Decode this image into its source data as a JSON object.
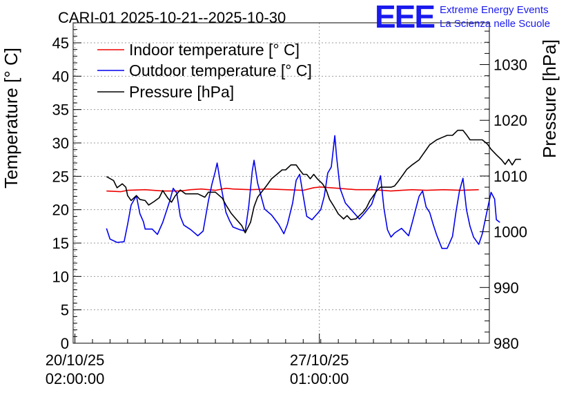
{
  "title": "CARI-01 2025-10-21--2025-10-30",
  "logo": {
    "text": "EEE",
    "line1": "Extreme Energy Events",
    "line2": "La Scienza nelle Scuole",
    "color": "#1a1aee"
  },
  "chart_data": {
    "type": "line",
    "title": "CARI-01 2025-10-21--2025-10-30",
    "x_ticks": [
      {
        "t": 0.0,
        "date": "20/10/25",
        "time": "02:00:00"
      },
      {
        "t": 6.96,
        "date": "27/10/25",
        "time": "01:00:00"
      }
    ],
    "x_range_days": [
      -0.05,
      11.8
    ],
    "left_axis": {
      "label": "Temperature [° C]",
      "ylim": [
        0,
        48
      ],
      "ticks": [
        0,
        5,
        10,
        15,
        20,
        25,
        30,
        35,
        40,
        45
      ]
    },
    "right_axis": {
      "label": "Pressure [hPa]",
      "ylim": [
        980,
        1037.5
      ],
      "ticks": [
        980,
        990,
        1000,
        1010,
        1020,
        1030
      ]
    },
    "grid": true,
    "legend_position": "top-left",
    "series": [
      {
        "name": "Indoor temperature [° C]",
        "axis": "left",
        "color": "#ee0000",
        "points": [
          [
            0.9,
            22.8
          ],
          [
            1.3,
            22.7
          ],
          [
            1.5,
            22.9
          ],
          [
            2.0,
            23.0
          ],
          [
            2.5,
            22.8
          ],
          [
            3.0,
            22.8
          ],
          [
            3.3,
            23.0
          ],
          [
            3.6,
            23.1
          ],
          [
            4.0,
            22.9
          ],
          [
            4.3,
            23.2
          ],
          [
            4.5,
            23.1
          ],
          [
            5.0,
            23.0
          ],
          [
            5.5,
            23.1
          ],
          [
            6.0,
            23.0
          ],
          [
            6.5,
            22.9
          ],
          [
            6.8,
            23.3
          ],
          [
            7.0,
            23.4
          ],
          [
            7.5,
            23.2
          ],
          [
            8.0,
            23.0
          ],
          [
            8.5,
            23.0
          ],
          [
            9.0,
            22.8
          ],
          [
            9.3,
            22.9
          ],
          [
            9.6,
            23.0
          ],
          [
            10.0,
            22.9
          ],
          [
            10.5,
            23.0
          ],
          [
            11.0,
            22.9
          ],
          [
            11.5,
            23.0
          ]
        ]
      },
      {
        "name": "Outdoor temperature [° C]",
        "axis": "left",
        "color": "#0000ee",
        "points": [
          [
            0.9,
            17.2
          ],
          [
            1.0,
            15.6
          ],
          [
            1.2,
            15.1
          ],
          [
            1.4,
            15.2
          ],
          [
            1.5,
            17.8
          ],
          [
            1.6,
            20.7
          ],
          [
            1.75,
            22.1
          ],
          [
            1.85,
            19.4
          ],
          [
            1.95,
            18.2
          ],
          [
            2.0,
            17.1
          ],
          [
            2.2,
            17.1
          ],
          [
            2.35,
            16.3
          ],
          [
            2.5,
            18.1
          ],
          [
            2.7,
            21.3
          ],
          [
            2.8,
            23.2
          ],
          [
            2.9,
            22.5
          ],
          [
            3.0,
            19.0
          ],
          [
            3.1,
            17.7
          ],
          [
            3.3,
            17.0
          ],
          [
            3.5,
            16.1
          ],
          [
            3.65,
            16.8
          ],
          [
            3.8,
            21.3
          ],
          [
            3.9,
            23.8
          ],
          [
            4.0,
            25.8
          ],
          [
            4.05,
            27.0
          ],
          [
            4.15,
            23.8
          ],
          [
            4.3,
            19.6
          ],
          [
            4.4,
            18.4
          ],
          [
            4.5,
            17.4
          ],
          [
            4.7,
            17.0
          ],
          [
            4.85,
            16.8
          ],
          [
            4.95,
            20.5
          ],
          [
            5.05,
            25.8
          ],
          [
            5.1,
            27.4
          ],
          [
            5.2,
            24.0
          ],
          [
            5.4,
            20.1
          ],
          [
            5.6,
            19.2
          ],
          [
            5.8,
            17.8
          ],
          [
            5.95,
            16.4
          ],
          [
            6.05,
            17.8
          ],
          [
            6.2,
            21.0
          ],
          [
            6.3,
            24.4
          ],
          [
            6.4,
            25.3
          ],
          [
            6.5,
            22.1
          ],
          [
            6.6,
            19.0
          ],
          [
            6.75,
            18.5
          ],
          [
            6.9,
            19.4
          ],
          [
            7.0,
            20.0
          ],
          [
            7.1,
            22.0
          ],
          [
            7.2,
            25.5
          ],
          [
            7.3,
            26.4
          ],
          [
            7.4,
            31.1
          ],
          [
            7.45,
            28.0
          ],
          [
            7.55,
            23.2
          ],
          [
            7.7,
            21.0
          ],
          [
            7.85,
            20.1
          ],
          [
            8.0,
            19.2
          ],
          [
            8.1,
            18.6
          ],
          [
            8.25,
            19.5
          ],
          [
            8.45,
            20.8
          ],
          [
            8.6,
            23.2
          ],
          [
            8.7,
            25.1
          ],
          [
            8.8,
            20.2
          ],
          [
            8.9,
            17.0
          ],
          [
            9.0,
            15.9
          ],
          [
            9.1,
            16.5
          ],
          [
            9.3,
            17.2
          ],
          [
            9.5,
            16.1
          ],
          [
            9.6,
            18.0
          ],
          [
            9.7,
            20.0
          ],
          [
            9.8,
            22.0
          ],
          [
            9.9,
            22.8
          ],
          [
            10.0,
            20.4
          ],
          [
            10.1,
            19.6
          ],
          [
            10.2,
            17.8
          ],
          [
            10.3,
            16.2
          ],
          [
            10.45,
            14.2
          ],
          [
            10.6,
            14.2
          ],
          [
            10.75,
            16.0
          ],
          [
            10.85,
            19.7
          ],
          [
            10.95,
            22.8
          ],
          [
            11.05,
            24.7
          ],
          [
            11.15,
            20.0
          ],
          [
            11.25,
            17.5
          ],
          [
            11.35,
            15.9
          ],
          [
            11.5,
            14.8
          ],
          [
            11.6,
            16.4
          ],
          [
            11.75,
            20.2
          ],
          [
            11.85,
            22.6
          ],
          [
            11.95,
            21.6
          ],
          [
            12.0,
            18.5
          ],
          [
            12.1,
            18.1
          ]
        ]
      },
      {
        "name": "Pressure [hPa]",
        "axis": "right",
        "color": "#000000",
        "points": [
          [
            0.9,
            1009.9
          ],
          [
            1.1,
            1009.2
          ],
          [
            1.2,
            1007.9
          ],
          [
            1.35,
            1008.6
          ],
          [
            1.45,
            1008.0
          ],
          [
            1.5,
            1006.5
          ],
          [
            1.6,
            1005.6
          ],
          [
            1.75,
            1006.5
          ],
          [
            1.85,
            1005.8
          ],
          [
            2.0,
            1005.6
          ],
          [
            2.1,
            1004.8
          ],
          [
            2.25,
            1005.4
          ],
          [
            2.4,
            1006.1
          ],
          [
            2.5,
            1007.4
          ],
          [
            2.65,
            1006.0
          ],
          [
            2.75,
            1005.3
          ],
          [
            2.85,
            1006.4
          ],
          [
            3.0,
            1007.5
          ],
          [
            3.15,
            1006.8
          ],
          [
            3.3,
            1006.8
          ],
          [
            3.5,
            1006.8
          ],
          [
            3.7,
            1006.2
          ],
          [
            3.8,
            1007.1
          ],
          [
            4.0,
            1007.1
          ],
          [
            4.2,
            1006.0
          ],
          [
            4.3,
            1004.8
          ],
          [
            4.45,
            1003.3
          ],
          [
            4.6,
            1002.2
          ],
          [
            4.75,
            1001.1
          ],
          [
            4.85,
            999.8
          ],
          [
            5.0,
            1001.7
          ],
          [
            5.1,
            1004.5
          ],
          [
            5.2,
            1006.2
          ],
          [
            5.3,
            1007.0
          ],
          [
            5.45,
            1008.2
          ],
          [
            5.6,
            1009.5
          ],
          [
            5.75,
            1010.3
          ],
          [
            5.9,
            1011.1
          ],
          [
            6.0,
            1011.1
          ],
          [
            6.15,
            1012.0
          ],
          [
            6.3,
            1012.0
          ],
          [
            6.4,
            1011.1
          ],
          [
            6.5,
            1010.3
          ],
          [
            6.6,
            1010.3
          ],
          [
            6.7,
            1009.5
          ],
          [
            6.8,
            1010.3
          ],
          [
            6.9,
            1009.5
          ],
          [
            7.05,
            1008.6
          ],
          [
            7.15,
            1007.6
          ],
          [
            7.25,
            1005.8
          ],
          [
            7.35,
            1004.8
          ],
          [
            7.5,
            1003.2
          ],
          [
            7.65,
            1002.3
          ],
          [
            7.75,
            1002.9
          ],
          [
            7.85,
            1002.2
          ],
          [
            8.0,
            1002.3
          ],
          [
            8.1,
            1002.9
          ],
          [
            8.2,
            1003.5
          ],
          [
            8.3,
            1004.3
          ],
          [
            8.4,
            1005.6
          ],
          [
            8.5,
            1006.5
          ],
          [
            8.6,
            1007.4
          ],
          [
            8.7,
            1008.0
          ],
          [
            8.8,
            1008.0
          ],
          [
            8.9,
            1008.0
          ],
          [
            9.0,
            1008.0
          ],
          [
            9.1,
            1008.2
          ],
          [
            9.2,
            1009.0
          ],
          [
            9.35,
            1010.3
          ],
          [
            9.45,
            1011.2
          ],
          [
            9.6,
            1012.0
          ],
          [
            9.8,
            1012.9
          ],
          [
            9.9,
            1013.8
          ],
          [
            10.0,
            1014.7
          ],
          [
            10.1,
            1015.6
          ],
          [
            10.3,
            1016.5
          ],
          [
            10.45,
            1016.9
          ],
          [
            10.6,
            1017.3
          ],
          [
            10.75,
            1017.3
          ],
          [
            10.9,
            1018.2
          ],
          [
            11.05,
            1018.2
          ],
          [
            11.15,
            1017.4
          ],
          [
            11.25,
            1016.5
          ],
          [
            11.45,
            1016.5
          ],
          [
            11.6,
            1016.5
          ],
          [
            11.75,
            1015.7
          ],
          [
            11.85,
            1014.8
          ],
          [
            12.0,
            1013.8
          ],
          [
            12.15,
            1012.9
          ],
          [
            12.25,
            1012.1
          ],
          [
            12.35,
            1013.0
          ],
          [
            12.45,
            1012.0
          ],
          [
            12.55,
            1013.0
          ],
          [
            12.7,
            1013.0
          ]
        ]
      }
    ]
  }
}
